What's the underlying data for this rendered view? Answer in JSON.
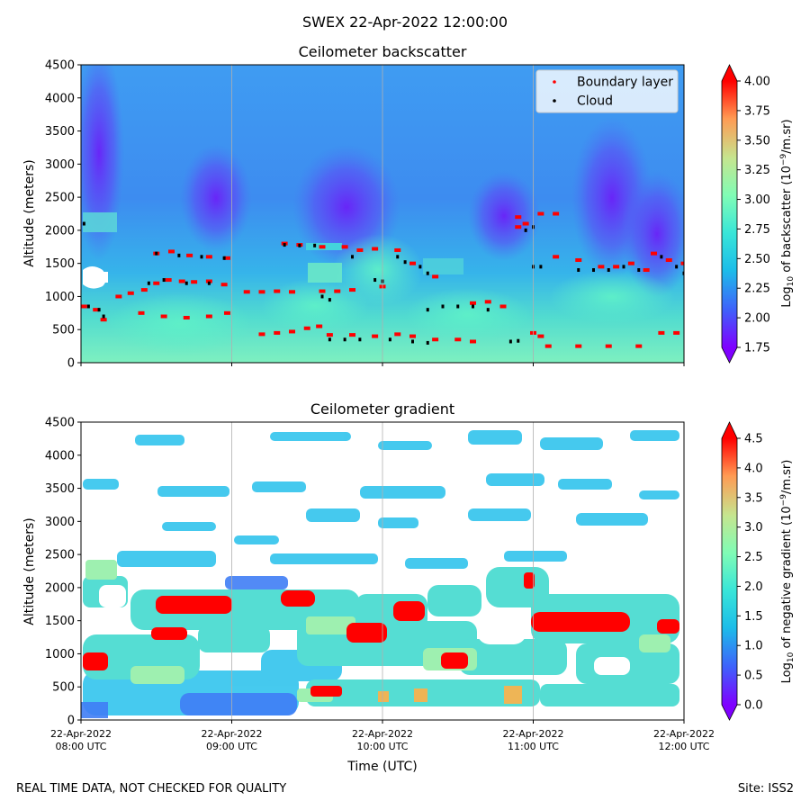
{
  "suptitle": "SWEX 22-Apr-2022 12:00:00",
  "footer": {
    "left": "REAL TIME DATA, NOT CHECKED FOR QUALITY",
    "right": "Site: ISS2"
  },
  "colors": {
    "scale": [
      "#7f00ff",
      "#3f60fb",
      "#1cbde9",
      "#5cf3cb",
      "#a2f3a6",
      "#e5bd80",
      "#ff6a39",
      "#ff0000"
    ]
  },
  "chart_data": [
    {
      "type": "heatmap",
      "title": "Ceilometer backscatter",
      "xlabel": "",
      "ylabel": "Altitude (meters)",
      "ylim": [
        0,
        4500
      ],
      "yticks": [
        0,
        500,
        1000,
        1500,
        2000,
        2500,
        3000,
        3500,
        4000,
        4500
      ],
      "xlim_hours_utc": [
        8,
        12
      ],
      "xticks": [
        "22-Apr-2022\n08:00 UTC",
        "22-Apr-2022\n09:00 UTC",
        "22-Apr-2022\n10:00 UTC",
        "22-Apr-2022\n11:00 UTC",
        "22-Apr-2022\n12:00 UTC"
      ],
      "grid": "vertical",
      "colorbar": {
        "label": "Log10 of backscatter (10^-9/m.sr)",
        "range": [
          1.75,
          4.0
        ],
        "ticks": [
          "1.75",
          "2.00",
          "2.25",
          "2.50",
          "2.75",
          "3.00",
          "3.25",
          "3.50",
          "3.75",
          "4.00"
        ]
      },
      "legend": {
        "position": "top-right",
        "entries": [
          "Boundary layer",
          "Cloud"
        ]
      },
      "series": [
        {
          "name": "Boundary layer",
          "color": "#ff0000",
          "points": [
            [
              8.02,
              850
            ],
            [
              8.1,
              800
            ],
            [
              8.15,
              650
            ],
            [
              8.25,
              1000
            ],
            [
              8.33,
              1050
            ],
            [
              8.42,
              1100
            ],
            [
              8.5,
              1200
            ],
            [
              8.58,
              1250
            ],
            [
              8.67,
              1230
            ],
            [
              8.75,
              1220
            ],
            [
              8.85,
              1230
            ],
            [
              8.95,
              1180
            ],
            [
              8.5,
              1650
            ],
            [
              8.6,
              1680
            ],
            [
              8.72,
              1620
            ],
            [
              8.85,
              1600
            ],
            [
              8.97,
              1580
            ],
            [
              8.4,
              750
            ],
            [
              8.55,
              700
            ],
            [
              8.7,
              680
            ],
            [
              8.85,
              700
            ],
            [
              8.97,
              750
            ],
            [
              9.1,
              1070
            ],
            [
              9.2,
              1070
            ],
            [
              9.3,
              1080
            ],
            [
              9.4,
              1070
            ],
            [
              9.2,
              430
            ],
            [
              9.3,
              450
            ],
            [
              9.4,
              470
            ],
            [
              9.5,
              520
            ],
            [
              9.58,
              550
            ],
            [
              9.35,
              1800
            ],
            [
              9.45,
              1780
            ],
            [
              9.6,
              1750
            ],
            [
              9.75,
              1750
            ],
            [
              9.85,
              1700
            ],
            [
              9.95,
              1720
            ],
            [
              9.65,
              420
            ],
            [
              9.8,
              420
            ],
            [
              9.95,
              400
            ],
            [
              10.1,
              430
            ],
            [
              10.2,
              400
            ],
            [
              10.35,
              350
            ],
            [
              10.5,
              350
            ],
            [
              10.6,
              320
            ],
            [
              9.6,
              1080
            ],
            [
              9.7,
              1080
            ],
            [
              9.8,
              1100
            ],
            [
              10.0,
              1150
            ],
            [
              10.1,
              1700
            ],
            [
              10.2,
              1500
            ],
            [
              10.35,
              1300
            ],
            [
              10.6,
              900
            ],
            [
              10.7,
              920
            ],
            [
              10.8,
              850
            ],
            [
              10.9,
              2200
            ],
            [
              11.05,
              2250
            ],
            [
              11.15,
              2250
            ],
            [
              10.9,
              2050
            ],
            [
              10.95,
              2100
            ],
            [
              11.0,
              450
            ],
            [
              11.05,
              400
            ],
            [
              11.15,
              1600
            ],
            [
              11.3,
              1550
            ],
            [
              11.45,
              1450
            ],
            [
              11.55,
              1450
            ],
            [
              11.65,
              1500
            ],
            [
              11.75,
              1400
            ],
            [
              11.1,
              250
            ],
            [
              11.3,
              250
            ],
            [
              11.5,
              250
            ],
            [
              11.7,
              250
            ],
            [
              11.8,
              1650
            ],
            [
              11.9,
              1550
            ],
            [
              12.0,
              1500
            ],
            [
              11.85,
              450
            ],
            [
              11.95,
              450
            ]
          ]
        },
        {
          "name": "Cloud",
          "color": "#000000",
          "points": [
            [
              8.02,
              2100
            ],
            [
              8.05,
              850
            ],
            [
              8.12,
              800
            ],
            [
              8.15,
              700
            ],
            [
              8.45,
              1200
            ],
            [
              8.55,
              1250
            ],
            [
              8.7,
              1200
            ],
            [
              8.85,
              1200
            ],
            [
              8.5,
              1650
            ],
            [
              8.65,
              1620
            ],
            [
              8.8,
              1600
            ],
            [
              8.95,
              1580
            ],
            [
              9.35,
              1780
            ],
            [
              9.45,
              1770
            ],
            [
              9.55,
              1770
            ],
            [
              9.6,
              1000
            ],
            [
              9.65,
              950
            ],
            [
              9.65,
              350
            ],
            [
              9.75,
              350
            ],
            [
              9.85,
              350
            ],
            [
              9.95,
              1250
            ],
            [
              10.0,
              1230
            ],
            [
              9.8,
              1600
            ],
            [
              10.05,
              350
            ],
            [
              10.2,
              320
            ],
            [
              10.3,
              300
            ],
            [
              10.1,
              1600
            ],
            [
              10.15,
              1520
            ],
            [
              10.25,
              1450
            ],
            [
              10.3,
              1350
            ],
            [
              10.3,
              800
            ],
            [
              10.4,
              850
            ],
            [
              10.5,
              850
            ],
            [
              10.6,
              850
            ],
            [
              10.7,
              800
            ],
            [
              10.85,
              320
            ],
            [
              10.9,
              330
            ],
            [
              10.95,
              2000
            ],
            [
              11.0,
              2050
            ],
            [
              11.0,
              1450
            ],
            [
              11.05,
              1450
            ],
            [
              11.3,
              1400
            ],
            [
              11.4,
              1400
            ],
            [
              11.5,
              1400
            ],
            [
              11.6,
              1450
            ],
            [
              11.7,
              1400
            ],
            [
              11.85,
              1600
            ],
            [
              11.95,
              1450
            ],
            [
              12.0,
              1350
            ]
          ]
        }
      ]
    },
    {
      "type": "heatmap",
      "title": "Ceilometer gradient",
      "xlabel": "Time (UTC)",
      "ylabel": "Altitude (meters)",
      "ylim": [
        0,
        4500
      ],
      "yticks": [
        0,
        500,
        1000,
        1500,
        2000,
        2500,
        3000,
        3500,
        4000,
        4500
      ],
      "xlim_hours_utc": [
        8,
        12
      ],
      "xticks": [
        "22-Apr-2022\n08:00 UTC",
        "22-Apr-2022\n09:00 UTC",
        "22-Apr-2022\n10:00 UTC",
        "22-Apr-2022\n11:00 UTC",
        "22-Apr-2022\n12:00 UTC"
      ],
      "grid": "vertical",
      "colorbar": {
        "label": "Log10 of negative gradient (10^-9/m.sr)",
        "range": [
          0.0,
          4.5
        ],
        "ticks": [
          "0.0",
          "0.5",
          "1.0",
          "1.5",
          "2.0",
          "2.5",
          "3.0",
          "3.5",
          "4.0",
          "4.5"
        ]
      }
    }
  ]
}
